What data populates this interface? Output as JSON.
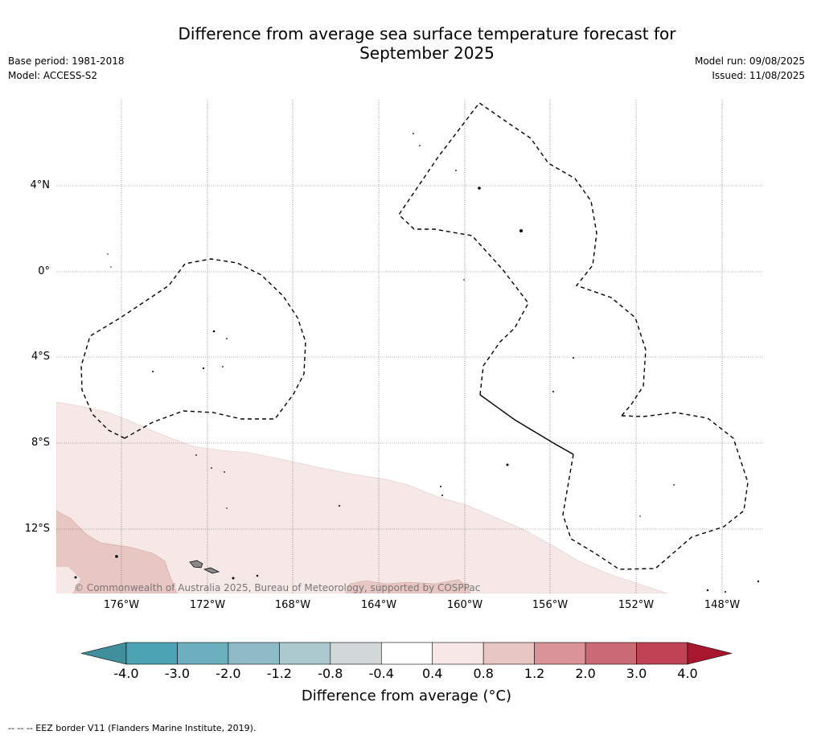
{
  "header": {
    "title_line1": "Difference from average sea surface temperature forecast for",
    "title_line2": "September 2025",
    "base_period": "Base period: 1981-2018",
    "model": "Model: ACCESS-S2",
    "model_run": "Model run: 09/08/2025",
    "issued": "Issued: 11/08/2025"
  },
  "map": {
    "lat_labels": [
      "4°N",
      "0°",
      "4°S",
      "8°S",
      "12°S"
    ],
    "lon_labels": [
      "176°W",
      "172°W",
      "168°W",
      "164°W",
      "160°W",
      "156°W",
      "152°W",
      "148°W"
    ],
    "copyright": "© Commonwealth of Australia 2025, Bureau of Meteorology, supported by COSPPac"
  },
  "colorbar": {
    "ticks": [
      "-4.0",
      "-3.0",
      "-2.0",
      "-1.2",
      "-0.8",
      "-0.4",
      "0.4",
      "0.8",
      "1.2",
      "2.0",
      "3.0",
      "4.0"
    ],
    "colors": [
      "#3f8f9c",
      "#4ba3b3",
      "#6cb0bf",
      "#8ebbc6",
      "#acc9cf",
      "#d2d7d8",
      "#ffffff",
      "#f5e8e6",
      "#e8c6c2",
      "#d99499",
      "#cb6a74",
      "#bf4355",
      "#a8172e"
    ],
    "label": "Difference from average (°C)"
  },
  "footer": {
    "eez_note": "--  --  -- EEZ border V11 (Flanders Marine Institute, 2019)."
  }
}
